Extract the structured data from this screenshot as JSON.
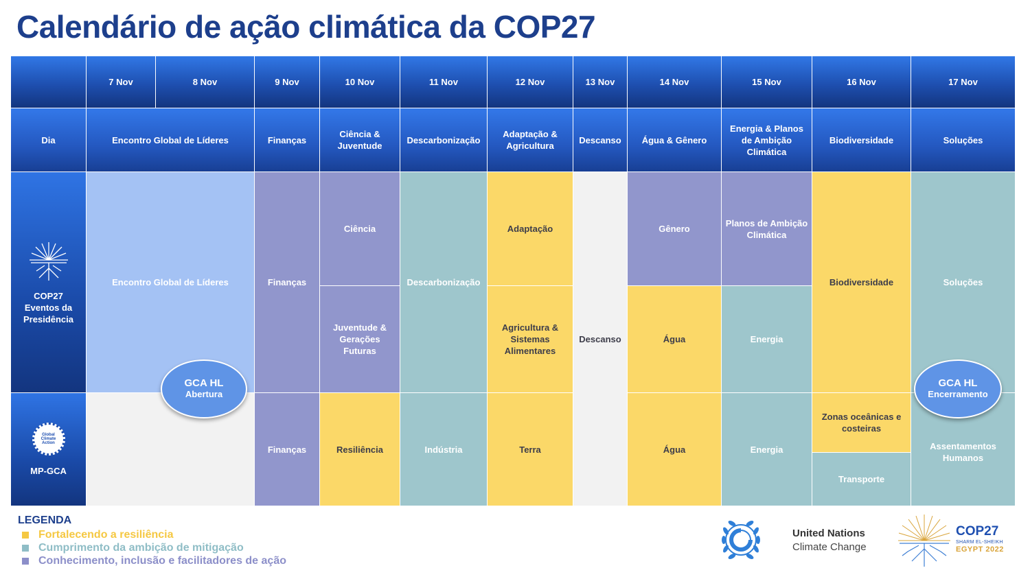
{
  "title": "Calendário de ação climática da COP27",
  "dates": [
    "7 Nov",
    "8 Nov",
    "9 Nov",
    "10 Nov",
    "11 Nov",
    "12 Nov",
    "13 Nov",
    "14 Nov",
    "15 Nov",
    "16 Nov",
    "17 Nov"
  ],
  "themes": {
    "dia": "Dia",
    "lideres": "Encontro Global de Líderes",
    "financas": "Finanças",
    "ciencia_juventude": "Ciência & Juventude",
    "descarbonizacao": "Descarbonização",
    "adaptacao_agricultura": "Adaptação & Agricultura",
    "descanso": "Descanso",
    "agua_genero": "Água & Gênero",
    "energia_planos": "Energia & Planos de Ambição Climática",
    "biodiversidade": "Biodiversidade",
    "solucoes": "Soluções"
  },
  "rows": {
    "presidency": "COP27 Eventos da Presidência",
    "mpgca": "MP-GCA",
    "mpgca_icon_text": "Global Climate Action"
  },
  "presidency": {
    "lideres": "Encontro Global de Líderes",
    "financas": "Finanças",
    "ciencia": "Ciência",
    "juventude": "Juventude & Gerações Futuras",
    "descarbonizacao": "Descarbonização",
    "adaptacao": "Adaptação",
    "agricultura": "Agricultura & Sistemas Alimentares",
    "genero": "Gênero",
    "agua": "Água",
    "planos": "Planos de Ambição Climática",
    "energia": "Energia",
    "biodiversidade": "Biodiversidade",
    "solucoes": "Soluções"
  },
  "mpgca": {
    "financas": "Finanças",
    "resiliencia": "Resiliência",
    "industria": "Indústria",
    "terra": "Terra",
    "descanso": "Descanso",
    "agua": "Água",
    "energia": "Energia",
    "zonas": "Zonas oceânicas e costeiras",
    "transporte": "Transporte",
    "assentamentos": "Assentamentos Humanos"
  },
  "events": {
    "opening_l1": "GCA HL",
    "opening_l2": "Abertura",
    "closing_l1": "GCA HL",
    "closing_l2": "Encerramento"
  },
  "legend": {
    "title": "LEGENDA",
    "items": [
      {
        "label": "Fortalecendo a resiliência",
        "color": "#f5c842"
      },
      {
        "label": "Cumprimento da ambição de mitigação",
        "color": "#8fbdc6"
      },
      {
        "label": "Conhecimento, inclusão e facilitadores de ação",
        "color": "#8c8fc9"
      }
    ]
  },
  "logos": {
    "unfccc_l1": "United Nations",
    "unfccc_l2": "Climate Change",
    "cop_l1": "COP27",
    "cop_l2": "SHARM EL-SHEIKH",
    "cop_l3": "EGYPT 2022"
  },
  "colors": {
    "header_blue": "#1e4fb0",
    "title_blue": "#1d3f8c",
    "yellow": "#fbd868",
    "teal": "#9ec6cc",
    "purple": "#9196cc",
    "light_blue": "#a4c2f4",
    "grey": "#f2f2f2"
  }
}
